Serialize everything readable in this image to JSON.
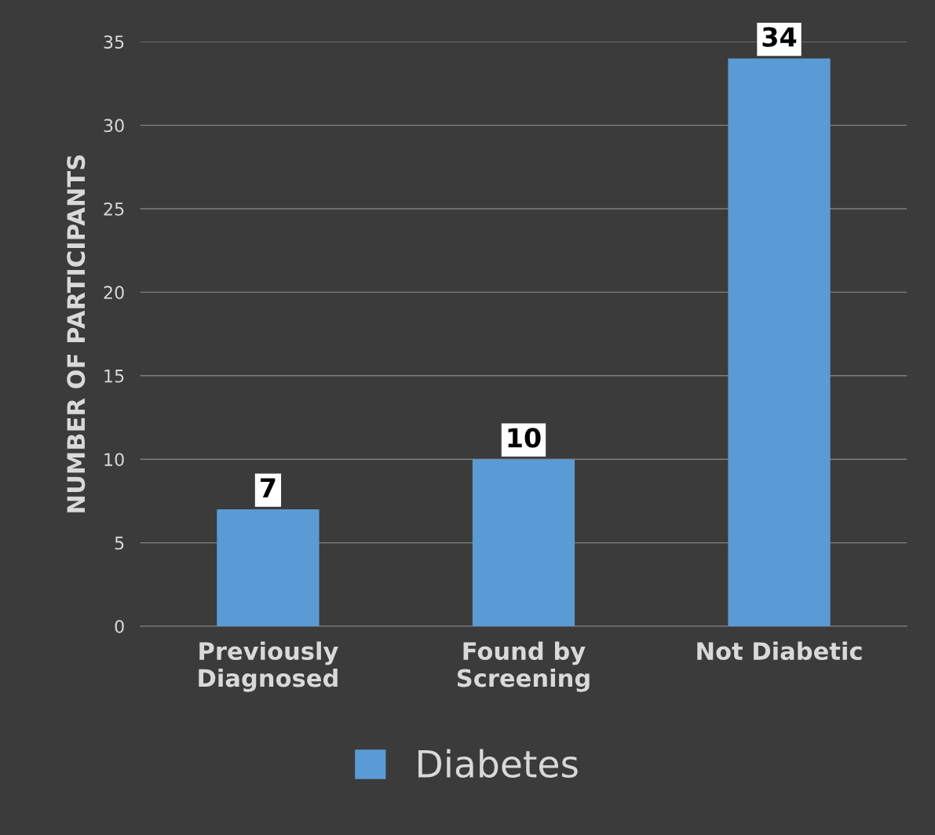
{
  "chart_data": {
    "type": "bar",
    "ylabel": "NUMBER OF PARTICIPANTS",
    "categories": [
      "Previously\nDiagnosed",
      "Found by\nScreening",
      "Not Diabetic"
    ],
    "series": [
      {
        "name": "Diabetes",
        "color": "#5b9bd5",
        "values": [
          7,
          10,
          34
        ]
      }
    ],
    "ylim": [
      0,
      35
    ],
    "yticks": [
      0,
      5,
      10,
      15,
      20,
      25,
      30,
      35
    ],
    "grid": "y",
    "legend": "bottom",
    "data_labels": true
  }
}
